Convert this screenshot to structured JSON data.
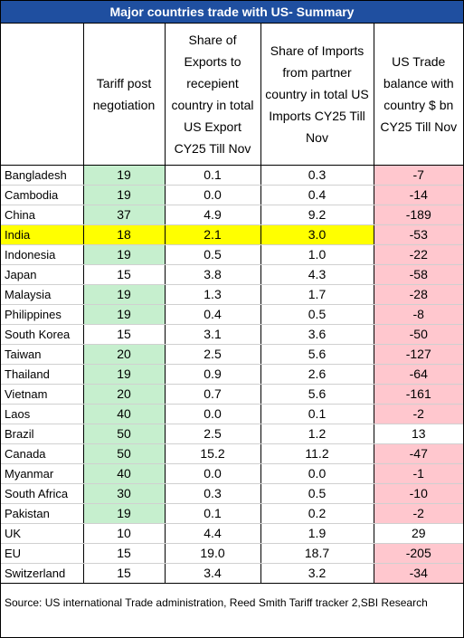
{
  "title": "Major countries trade with US- Summary",
  "headers": [
    "",
    "Tariff post negotiation",
    "Share of Exports to recepient country in total US Export CY25 Till Nov",
    "Share of  Imports from partner country in total US Imports CY25 Till Nov",
    "US Trade balance with country $ bn CY25 Till Nov"
  ],
  "rows": [
    {
      "country": "Bangladesh",
      "tariff": "19",
      "exports": "0.1",
      "imports": "0.3",
      "balance": "-7",
      "tariff_green": true,
      "highlight": false
    },
    {
      "country": "Cambodia",
      "tariff": "19",
      "exports": "0.0",
      "imports": "0.4",
      "balance": "-14",
      "tariff_green": true,
      "highlight": false
    },
    {
      "country": "China",
      "tariff": "37",
      "exports": "4.9",
      "imports": "9.2",
      "balance": "-189",
      "tariff_green": true,
      "highlight": false
    },
    {
      "country": "India",
      "tariff": "18",
      "exports": "2.1",
      "imports": "3.0",
      "balance": "-53",
      "tariff_green": true,
      "highlight": true
    },
    {
      "country": "Indonesia",
      "tariff": "19",
      "exports": "0.5",
      "imports": "1.0",
      "balance": "-22",
      "tariff_green": true,
      "highlight": false
    },
    {
      "country": "Japan",
      "tariff": "15",
      "exports": "3.8",
      "imports": "4.3",
      "balance": "-58",
      "tariff_green": false,
      "highlight": false
    },
    {
      "country": "Malaysia",
      "tariff": "19",
      "exports": "1.3",
      "imports": "1.7",
      "balance": "-28",
      "tariff_green": true,
      "highlight": false
    },
    {
      "country": "Philippines",
      "tariff": "19",
      "exports": "0.4",
      "imports": "0.5",
      "balance": "-8",
      "tariff_green": true,
      "highlight": false
    },
    {
      "country": "South Korea",
      "tariff": "15",
      "exports": "3.1",
      "imports": "3.6",
      "balance": "-50",
      "tariff_green": false,
      "highlight": false
    },
    {
      "country": "Taiwan",
      "tariff": "20",
      "exports": "2.5",
      "imports": "5.6",
      "balance": "-127",
      "tariff_green": true,
      "highlight": false
    },
    {
      "country": "Thailand",
      "tariff": "19",
      "exports": "0.9",
      "imports": "2.6",
      "balance": "-64",
      "tariff_green": true,
      "highlight": false
    },
    {
      "country": "Vietnam",
      "tariff": "20",
      "exports": "0.7",
      "imports": "5.6",
      "balance": "-161",
      "tariff_green": true,
      "highlight": false
    },
    {
      "country": "Laos",
      "tariff": "40",
      "exports": "0.0",
      "imports": "0.1",
      "balance": "-2",
      "tariff_green": true,
      "highlight": false
    },
    {
      "country": "Brazil",
      "tariff": "50",
      "exports": "2.5",
      "imports": "1.2",
      "balance": "13",
      "tariff_green": true,
      "highlight": false
    },
    {
      "country": "Canada",
      "tariff": "50",
      "exports": "15.2",
      "imports": "11.2",
      "balance": "-47",
      "tariff_green": true,
      "highlight": false
    },
    {
      "country": "Myanmar",
      "tariff": "40",
      "exports": "0.0",
      "imports": "0.0",
      "balance": "-1",
      "tariff_green": true,
      "highlight": false
    },
    {
      "country": "South Africa",
      "tariff": "30",
      "exports": "0.3",
      "imports": "0.5",
      "balance": "-10",
      "tariff_green": true,
      "highlight": false
    },
    {
      "country": "Pakistan",
      "tariff": "19",
      "exports": "0.1",
      "imports": "0.2",
      "balance": "-2",
      "tariff_green": true,
      "highlight": false
    },
    {
      "country": "UK",
      "tariff": "10",
      "exports": "4.4",
      "imports": "1.9",
      "balance": "29",
      "tariff_green": false,
      "highlight": false
    },
    {
      "country": "EU",
      "tariff": "15",
      "exports": "19.0",
      "imports": "18.7",
      "balance": "-205",
      "tariff_green": false,
      "highlight": false
    },
    {
      "country": "Switzerland",
      "tariff": "15",
      "exports": "3.4",
      "imports": "3.2",
      "balance": "-34",
      "tariff_green": false,
      "highlight": false
    }
  ],
  "source": "Source: US international Trade administration, Reed Smith Tariff tracker 2,SBI Research",
  "colors": {
    "title_bg": "#1f4fa0",
    "tariff_green": "#c6efce",
    "negative_red": "#ffc7ce",
    "highlight_yellow": "#ffff00"
  }
}
